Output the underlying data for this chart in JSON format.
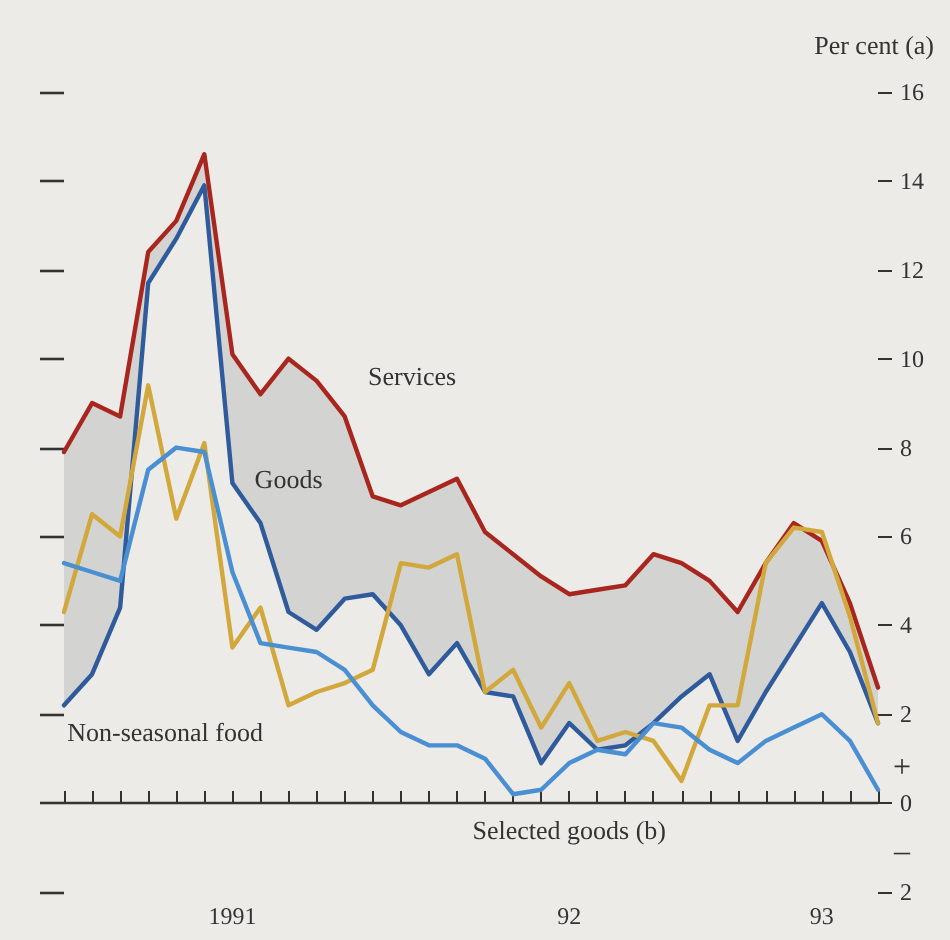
{
  "chart_data": {
    "type": "line",
    "ylabel": "Per cent (a)",
    "x": [
      "1991-01",
      "1991-02",
      "1991-03",
      "1991-04",
      "1991-05",
      "1991-06",
      "1991-07",
      "1991-08",
      "1991-09",
      "1991-10",
      "1991-11",
      "1991-12",
      "1992-01",
      "1992-02",
      "1992-03",
      "1992-04",
      "1992-05",
      "1992-06",
      "1992-07",
      "1992-08",
      "1992-09",
      "1992-10",
      "1992-11",
      "1992-12",
      "1993-01",
      "1993-02",
      "1993-03",
      "1993-04",
      "1993-05",
      "1993-06"
    ],
    "series": [
      {
        "name": "Services",
        "color": "#a8261e",
        "values": [
          7.9,
          9.0,
          8.7,
          12.4,
          13.1,
          14.6,
          10.1,
          9.2,
          10.0,
          9.5,
          8.7,
          6.9,
          6.7,
          7.0,
          7.3,
          6.1,
          5.6,
          5.1,
          4.7,
          4.8,
          4.9,
          5.6,
          5.4,
          5.0,
          4.3,
          5.4,
          6.3,
          5.9,
          4.5,
          2.6
        ],
        "lower": [
          2.2,
          2.9,
          4.4,
          11.7,
          12.7,
          13.9,
          7.2,
          6.3,
          4.3,
          3.9,
          4.6,
          4.7,
          4.0,
          2.9,
          3.6,
          2.5,
          2.4,
          0.9,
          1.8,
          1.2,
          1.3,
          1.8,
          2.4,
          2.9,
          1.4,
          2.5,
          3.5,
          4.5,
          3.4,
          1.8
        ],
        "upper": [
          7.9,
          9.0,
          8.7,
          12.4,
          13.1,
          14.6,
          10.1,
          9.2,
          10.0,
          9.5,
          8.7,
          6.9,
          6.7,
          7.0,
          7.3,
          6.1,
          5.6,
          5.1,
          4.7,
          4.8,
          4.9,
          5.6,
          5.4,
          5.0,
          4.3,
          5.4,
          6.3,
          5.9,
          4.5,
          2.6
        ]
      },
      {
        "name": "Goods",
        "color": "#2f5b9c",
        "values": [
          2.2,
          2.9,
          4.4,
          11.7,
          12.7,
          13.9,
          7.2,
          6.3,
          4.3,
          3.9,
          4.6,
          4.7,
          4.0,
          2.9,
          3.6,
          2.5,
          2.4,
          0.9,
          1.8,
          1.2,
          1.3,
          1.8,
          2.4,
          2.9,
          1.4,
          2.5,
          3.5,
          4.5,
          3.4,
          1.8
        ]
      },
      {
        "name": "Non-seasonal food",
        "color": "#d2a83c",
        "values": [
          4.3,
          6.5,
          6.0,
          9.4,
          6.4,
          8.1,
          3.5,
          4.4,
          2.2,
          2.5,
          2.7,
          3.0,
          5.4,
          5.3,
          5.6,
          2.5,
          3.0,
          1.7,
          2.7,
          1.4,
          1.6,
          1.4,
          0.5,
          2.2,
          2.2,
          5.4,
          6.2,
          6.1,
          4.2,
          1.8
        ]
      },
      {
        "name": "Selected goods (b)",
        "color": "#4a8fd2",
        "values": [
          5.4,
          5.2,
          5.0,
          7.5,
          8.0,
          7.9,
          5.2,
          3.6,
          3.5,
          3.4,
          3.0,
          2.2,
          1.6,
          1.3,
          1.3,
          1.0,
          0.2,
          0.3,
          0.9,
          1.2,
          1.1,
          1.8,
          1.7,
          1.2,
          0.9,
          1.4,
          1.7,
          2.0,
          1.4,
          0.3
        ]
      }
    ],
    "xlim": [
      "1991-01",
      "1993-06"
    ],
    "xticks": [
      {
        "value": "1991-01",
        "label": null
      },
      {
        "value": "1991-02",
        "label": null
      },
      {
        "value": "1991-03",
        "label": null
      },
      {
        "value": "1991-04",
        "label": null
      },
      {
        "value": "1991-05",
        "label": null
      },
      {
        "value": "1991-06",
        "label": null
      },
      {
        "value": "1991-07",
        "label": "1991"
      },
      {
        "value": "1991-08",
        "label": null
      },
      {
        "value": "1991-09",
        "label": null
      },
      {
        "value": "1991-10",
        "label": null
      },
      {
        "value": "1991-11",
        "label": null
      },
      {
        "value": "1991-12",
        "label": null
      },
      {
        "value": "1992-01",
        "label": null
      },
      {
        "value": "1992-02",
        "label": null
      },
      {
        "value": "1992-03",
        "label": null
      },
      {
        "value": "1992-04",
        "label": null
      },
      {
        "value": "1992-05",
        "label": null
      },
      {
        "value": "1992-06",
        "label": null
      },
      {
        "value": "1992-07",
        "label": "92"
      },
      {
        "value": "1992-08",
        "label": null
      },
      {
        "value": "1992-09",
        "label": null
      },
      {
        "value": "1992-10",
        "label": null
      },
      {
        "value": "1992-11",
        "label": null
      },
      {
        "value": "1992-12",
        "label": null
      },
      {
        "value": "1993-01",
        "label": null
      },
      {
        "value": "1993-02",
        "label": null
      },
      {
        "value": "1993-03",
        "label": null
      },
      {
        "value": "1993-04",
        "label": "93"
      },
      {
        "value": "1993-05",
        "label": null
      },
      {
        "value": "1993-06",
        "label": null
      }
    ],
    "ylim": [
      -2,
      16
    ],
    "yticks": [
      {
        "value": -2,
        "label": "2"
      },
      0,
      2,
      4,
      6,
      8,
      10,
      12,
      14,
      16
    ],
    "ref_lines": [
      {
        "axis": "y",
        "value": 0,
        "color": "#333333"
      }
    ],
    "annotations": [
      "+",
      "–"
    ],
    "grid": false,
    "legend": false,
    "marker": "none",
    "line_style": "solid"
  }
}
